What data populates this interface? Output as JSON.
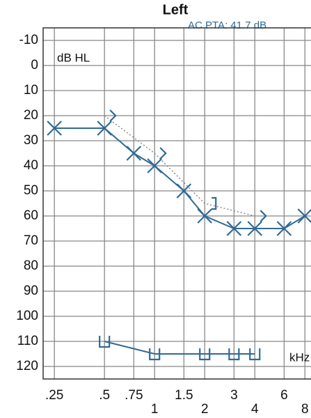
{
  "chart_data": {
    "type": "audiogram",
    "title": "Left",
    "subtitle": "AC PTA: 41.7 dB",
    "y_label": "dB HL",
    "x_label": "kHz",
    "log_x": true,
    "y_inverted": true,
    "grid": true,
    "xlim": [
      0.214,
      8.7
    ],
    "xticks": [
      {
        "value": 0.25,
        "label": ".25"
      },
      {
        "value": 0.5,
        "label": ".5"
      },
      {
        "value": 0.75,
        "label": ".75"
      },
      1,
      1.5,
      2,
      3,
      4,
      6,
      8
    ],
    "ylim": [
      -15,
      125
    ],
    "yticks": [
      -10,
      0,
      10,
      20,
      30,
      40,
      50,
      60,
      70,
      80,
      90,
      100,
      110,
      120
    ],
    "series": [
      {
        "color": "#2f6a96",
        "marker": "cross",
        "line": "solid",
        "x": [
          0.25,
          0.5,
          0.75,
          1,
          1.5,
          2,
          3,
          4,
          6,
          8
        ],
        "values": [
          25,
          25,
          35,
          40,
          50,
          60,
          65,
          65,
          65,
          60
        ]
      },
      {
        "color": "#2f6a96",
        "marker": "angle",
        "line": "dotted",
        "markers": [
          "angle",
          "angle",
          "bracket",
          "angle"
        ],
        "x": [
          0.5,
          1,
          2,
          4
        ],
        "values": [
          20,
          35,
          55,
          60
        ]
      },
      {
        "color": "#2f6a96",
        "marker": "cup",
        "line": "solid",
        "x": [
          0.5,
          1,
          2,
          3,
          4
        ],
        "values": [
          110,
          115,
          115,
          115,
          115
        ]
      }
    ]
  }
}
